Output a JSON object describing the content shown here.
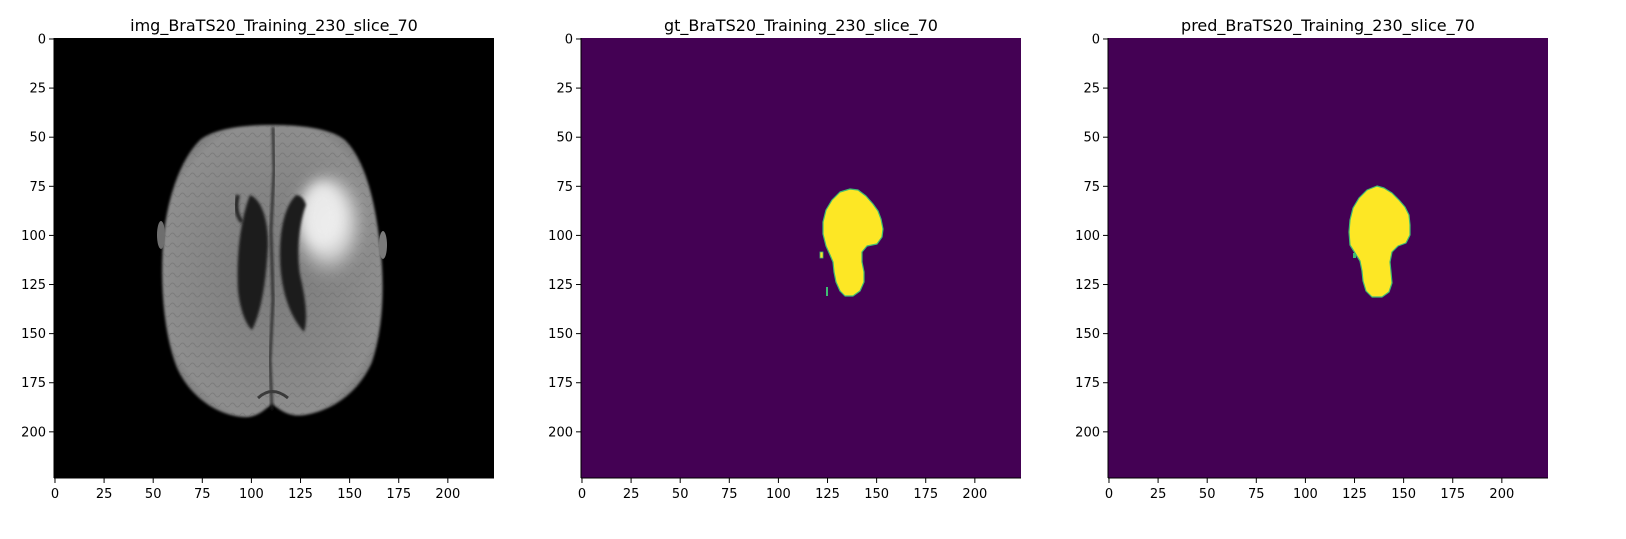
{
  "figure": {
    "panels": [
      {
        "title": "img_BraTS20_Training_230_slice_70",
        "kind": "mri-flair-grayscale",
        "background_color": "#000000"
      },
      {
        "title": "gt_BraTS20_Training_230_slice_70",
        "kind": "segmentation-mask-ground-truth",
        "background_color": "#440154",
        "mask_color": "#fde725",
        "edge_color": "#3fbc73"
      },
      {
        "title": "pred_BraTS20_Training_230_slice_70",
        "kind": "segmentation-mask-prediction",
        "background_color": "#440154",
        "mask_color": "#fde725",
        "edge_color": "#3fbc73"
      }
    ],
    "x_ticks": [
      "0",
      "25",
      "50",
      "75",
      "100",
      "125",
      "150",
      "175",
      "200"
    ],
    "y_ticks": [
      "0",
      "25",
      "50",
      "75",
      "100",
      "125",
      "150",
      "175",
      "200"
    ],
    "xlim": [
      -0.5,
      223.5
    ],
    "ylim": [
      223.5,
      -0.5
    ],
    "colors": {
      "brain_gray": "#8a8a8a",
      "lesion_bright": "#efefef",
      "ventricle_dark": "#1c1c1c"
    }
  }
}
